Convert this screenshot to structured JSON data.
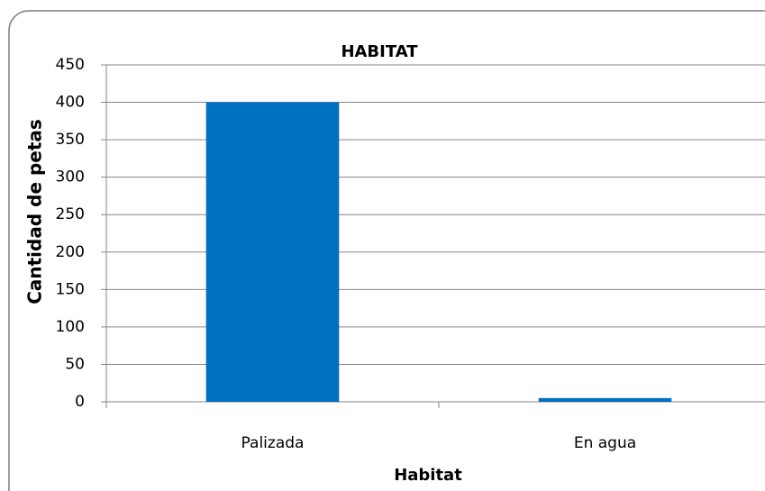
{
  "chart_data": {
    "type": "bar",
    "title": "HABITAT",
    "x_label": "Habitat",
    "y_label": "Cantidad de petas",
    "categories": [
      "Palizada",
      "En agua"
    ],
    "values": [
      400,
      5
    ],
    "color": "#0070c0",
    "ylim": [
      0,
      450
    ],
    "yticks": [
      0,
      50,
      100,
      150,
      200,
      250,
      300,
      350,
      400,
      450
    ],
    "grid": true
  }
}
